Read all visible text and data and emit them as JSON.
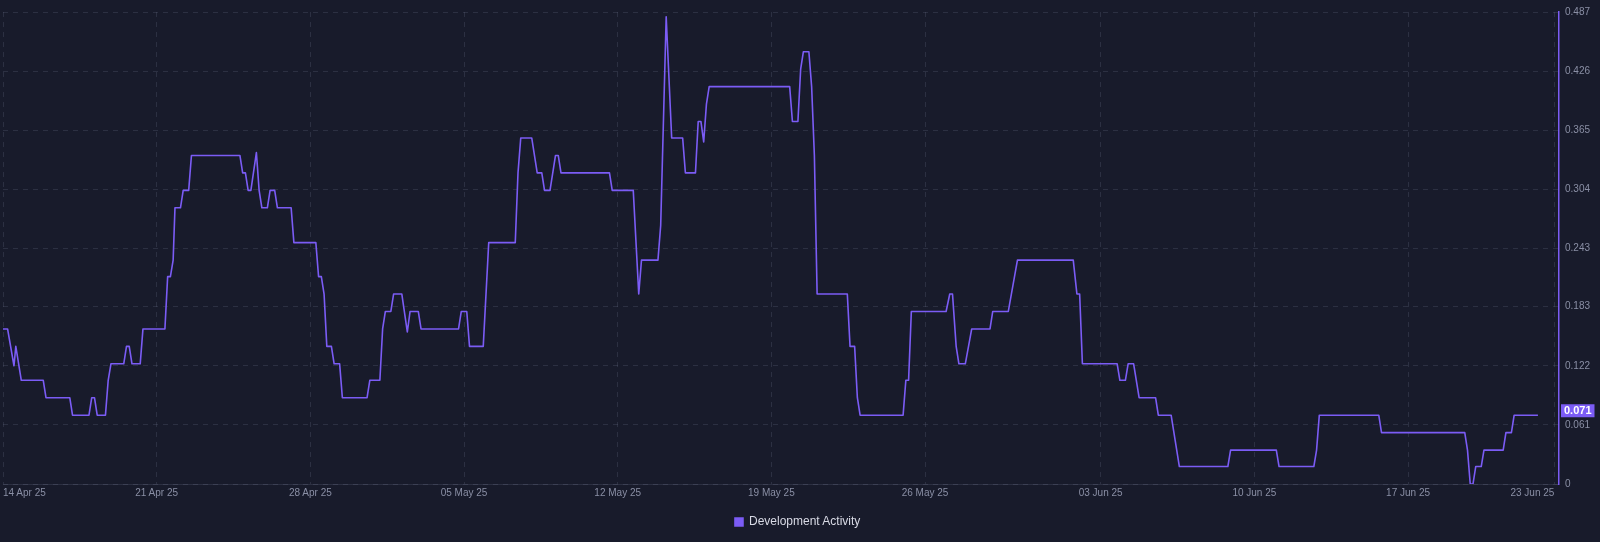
{
  "chart_data": {
    "type": "line",
    "x": [
      "--04-14T00:00",
      "--04-14T05:00",
      "--04-14T12:00",
      "--04-14T14:00",
      "--04-14T20:00",
      "--04-15T20:00",
      "--04-15T23:00",
      "--04-17T01:00",
      "--04-17T04:00",
      "--04-17T22:00",
      "--04-18T01:00",
      "--04-18T04:00",
      "--04-18T07:00",
      "--04-18T16:00",
      "--04-18T19:00",
      "--04-18T22:00",
      "--04-19T12:00",
      "--04-19T15:00",
      "--04-19T18:00",
      "--04-19T21:00",
      "--04-20T06:00",
      "--04-20T09:00",
      "--04-21T09:00",
      "--04-21T12:00",
      "--04-21T15:00",
      "--04-21T18:00",
      "--04-21T20:00",
      "--04-22T02:00",
      "--04-22T05:00",
      "--04-22T11:00",
      "--04-22T14:00",
      "--04-24T19:00",
      "--04-24T22:00",
      "--04-25T01:00",
      "--04-25T04:00",
      "--04-25T07:00",
      "--04-25T13:00",
      "--04-25T16:00",
      "--04-25T19:00",
      "--04-26T01:00",
      "--04-26T04:00",
      "--04-26T09:00",
      "--04-26T12:00",
      "--04-27T03:00",
      "--04-27T06:00",
      "--04-28T06:00",
      "--04-28T09:00",
      "--04-28T12:00",
      "--04-28T15:00",
      "--04-28T18:00",
      "--04-28T23:00",
      "--04-29T02:00",
      "--04-29T08:00",
      "--04-29T11:00",
      "--04-30T14:00",
      "--04-30T17:00",
      "--05-01T04:00",
      "--05-01T07:00",
      "--05-01T10:00",
      "--05-01T16:00",
      "--05-01T19:00",
      "--05-02T04:00",
      "--05-02T10:00",
      "--05-02T13:00",
      "--05-02T22:00",
      "--05-03T01:00",
      "--05-04T18:00",
      "--05-04T21:00",
      "--05-05T03:00",
      "--05-05T06:00",
      "--05-05T21:00",
      "--05-06T03:00",
      "--05-07T08:00",
      "--05-07T11:00",
      "--05-07T14:00",
      "--05-08T02:00",
      "--05-08T08:00",
      "--05-08T13:00",
      "--05-08T16:00",
      "--05-08T22:00",
      "--05-09T04:00",
      "--05-09T07:00",
      "--05-09T10:00",
      "--05-11T15:00",
      "--05-11T18:00",
      "--05-12T17:00",
      "--05-12T23:00",
      "--05-13T02:00",
      "--05-13T20:00",
      "--05-13T23:00",
      "--05-14T05:00",
      "--05-14T11:00",
      "--05-14T23:00",
      "--05-15T02:00",
      "--05-15T13:00",
      "--05-15T16:00",
      "--05-15T19:00",
      "--05-15T22:00",
      "--05-16T01:00",
      "--05-16T04:00",
      "--05-19T20:00",
      "--05-19T23:00",
      "--05-20T05:00",
      "--05-20T08:00",
      "--05-20T11:00",
      "--05-20T17:00",
      "--05-20T20:00",
      "--05-20T23:00",
      "--05-21T02:00",
      "--05-22T11:00",
      "--05-22T14:00",
      "--05-22T19:00",
      "--05-22T22:00",
      "--05-23T01:00",
      "--05-25T00:00",
      "--05-25T03:00",
      "--05-25T06:00",
      "--05-25T09:00",
      "--05-26T23:00",
      "--05-27T03:00",
      "--05-27T06:00",
      "--05-27T10:00",
      "--05-27T13:00",
      "--05-27T20:00",
      "--05-28T03:00",
      "--05-28T23:00",
      "--05-29T02:00",
      "--05-29T19:00",
      "--05-30T05:00",
      "--06-01T18:00",
      "--06-01T22:00",
      "--06-02T01:00",
      "--06-02T04:00",
      "--06-03T18:00",
      "--06-03T21:00",
      "--06-04T03:00",
      "--06-04T06:00",
      "--06-04T12:00",
      "--06-04T18:00",
      "--06-05T12:00",
      "--06-05T15:00",
      "--06-06T05:00",
      "--06-06T14:00",
      "--06-08T19:00",
      "--06-08T22:00",
      "--06-11T00:00",
      "--06-11T03:00",
      "--06-12T17:00",
      "--06-12T20:00",
      "--06-12T23:00",
      "--06-15T16:00",
      "--06-15T19:00",
      "--06-19T14:00",
      "--06-19T17:00",
      "--06-19T20:00",
      "--06-19T23:00",
      "--06-20T02:00",
      "--06-20T08:00",
      "--06-20T11:00",
      "--06-21T08:00",
      "--06-21T11:00",
      "--06-21T17:00",
      "--06-21T20:00",
      "--06-22T22:00"
    ],
    "series": [
      {
        "name": "Development Activity",
        "color": "#7b5cf5",
        "values": [
          0.16,
          0.16,
          0.122,
          0.142,
          0.107,
          0.107,
          0.089,
          0.089,
          0.071,
          0.071,
          0.089,
          0.089,
          0.071,
          0.071,
          0.107,
          0.124,
          0.124,
          0.142,
          0.142,
          0.124,
          0.124,
          0.16,
          0.16,
          0.214,
          0.214,
          0.231,
          0.285,
          0.285,
          0.303,
          0.303,
          0.339,
          0.339,
          0.321,
          0.321,
          0.303,
          0.303,
          0.342,
          0.303,
          0.285,
          0.285,
          0.303,
          0.303,
          0.285,
          0.285,
          0.249,
          0.249,
          0.214,
          0.214,
          0.196,
          0.142,
          0.142,
          0.124,
          0.124,
          0.089,
          0.089,
          0.107,
          0.107,
          0.16,
          0.178,
          0.178,
          0.196,
          0.196,
          0.157,
          0.178,
          0.178,
          0.16,
          0.16,
          0.178,
          0.178,
          0.142,
          0.142,
          0.249,
          0.249,
          0.321,
          0.357,
          0.357,
          0.321,
          0.321,
          0.303,
          0.303,
          0.339,
          0.339,
          0.321,
          0.321,
          0.303,
          0.303,
          0.196,
          0.231,
          0.231,
          0.267,
          0.482,
          0.357,
          0.357,
          0.321,
          0.321,
          0.374,
          0.374,
          0.353,
          0.392,
          0.41,
          0.41,
          0.374,
          0.374,
          0.428,
          0.446,
          0.446,
          0.41,
          0.339,
          0.196,
          0.196,
          0.142,
          0.142,
          0.089,
          0.071,
          0.071,
          0.107,
          0.107,
          0.178,
          0.178,
          0.196,
          0.196,
          0.142,
          0.124,
          0.124,
          0.16,
          0.16,
          0.178,
          0.178,
          0.231,
          0.231,
          0.196,
          0.196,
          0.124,
          0.124,
          0.107,
          0.107,
          0.124,
          0.124,
          0.089,
          0.089,
          0.071,
          0.071,
          0.018,
          0.018,
          0.035,
          0.035,
          0.018,
          0.018,
          0.035,
          0.071,
          0.071,
          0.053,
          0.053,
          0.035,
          0,
          0,
          0.018,
          0.018,
          0.035,
          0.035,
          0.053,
          0.053,
          0.071,
          0.071
        ]
      }
    ],
    "xlim": [
      "--04-14T00:00",
      "--06-23T21:00"
    ],
    "xticks": [
      {
        "value": "--04-14",
        "label": "14 Apr 25"
      },
      {
        "value": "--04-21",
        "label": "21 Apr 25"
      },
      {
        "value": "--04-28",
        "label": "28 Apr 25"
      },
      {
        "value": "--05-05",
        "label": "05 May 25"
      },
      {
        "value": "--05-12",
        "label": "12 May 25"
      },
      {
        "value": "--05-19",
        "label": "19 May 25"
      },
      {
        "value": "--05-26",
        "label": "26 May 25"
      },
      {
        "value": "--06-03",
        "label": "03 Jun 25"
      },
      {
        "value": "--06-10",
        "label": "10 Jun 25"
      },
      {
        "value": "--06-17",
        "label": "17 Jun 25"
      },
      {
        "value": "--06-23T16:00",
        "label": "23 Jun 25"
      }
    ],
    "ylim": [
      0,
      0.487
    ],
    "yticks": [
      0,
      0.061,
      0.122,
      0.183,
      0.243,
      0.304,
      0.365,
      0.426,
      0.487
    ],
    "annotations": [
      {
        "text": "0.071",
        "x": "--06-22T22:00",
        "y": 0.071
      }
    ],
    "grid": true,
    "legend": "bottom",
    "marker": "none",
    "line_style": "solid"
  }
}
